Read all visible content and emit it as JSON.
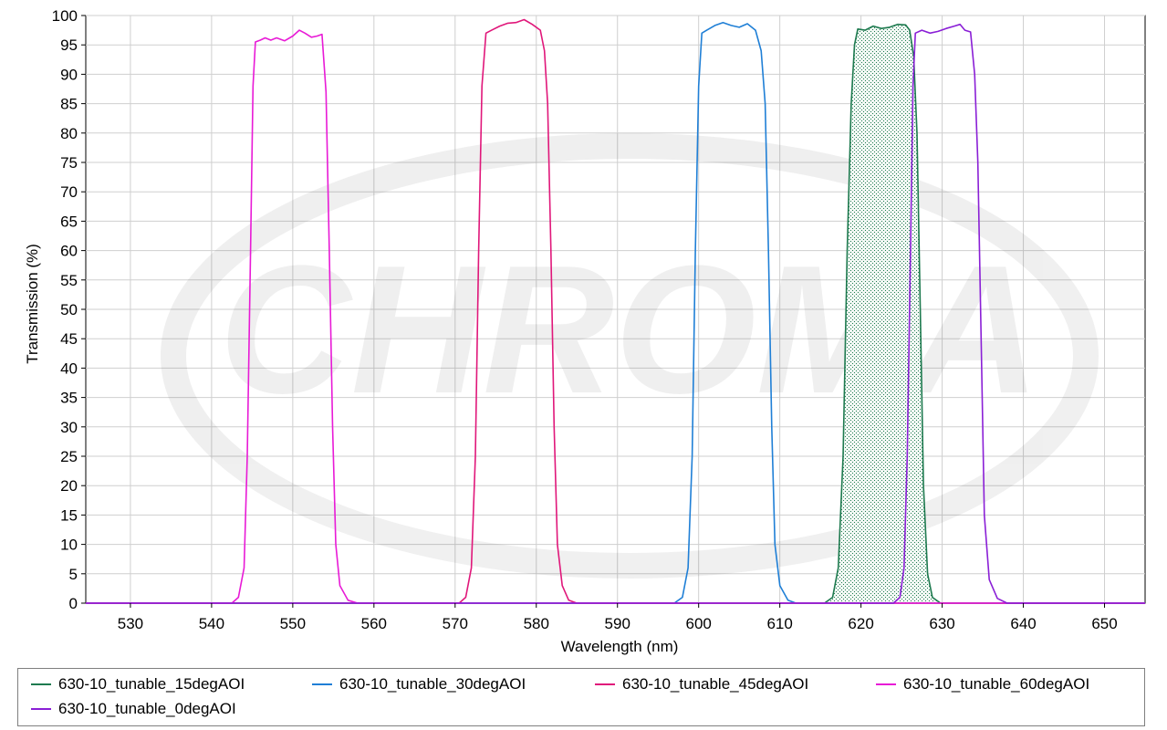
{
  "chart_data": {
    "type": "line",
    "xlabel": "Wavelength (nm)",
    "ylabel": "Transmission (%)",
    "xlim": [
      524.5,
      655
    ],
    "ylim": [
      0,
      100
    ],
    "x_ticks": [
      530,
      540,
      550,
      560,
      570,
      580,
      590,
      600,
      610,
      620,
      630,
      640,
      650
    ],
    "y_ticks": [
      0,
      5,
      10,
      15,
      20,
      25,
      30,
      35,
      40,
      45,
      50,
      55,
      60,
      65,
      70,
      75,
      80,
      85,
      90,
      95,
      100
    ],
    "grid": true,
    "legend_position": "bottom",
    "watermark": "CHROMA",
    "series": [
      {
        "name": "630-10_tunable_15degAOI",
        "color": "#1e7a4f",
        "fill": "dotted-green",
        "points": [
          [
            524.5,
            0
          ],
          [
            615.5,
            0
          ],
          [
            616.5,
            1
          ],
          [
            617.2,
            6
          ],
          [
            617.8,
            25
          ],
          [
            618.3,
            60
          ],
          [
            618.8,
            85
          ],
          [
            619.2,
            95
          ],
          [
            619.6,
            97.7
          ],
          [
            620.5,
            97.5
          ],
          [
            621.5,
            98.2
          ],
          [
            622.5,
            97.8
          ],
          [
            623.5,
            98
          ],
          [
            624.5,
            98.5
          ],
          [
            625.5,
            98.4
          ],
          [
            626,
            97.5
          ],
          [
            626.5,
            93
          ],
          [
            626.9,
            80
          ],
          [
            627.3,
            50
          ],
          [
            627.7,
            20
          ],
          [
            628.2,
            5
          ],
          [
            628.8,
            1
          ],
          [
            629.8,
            0
          ],
          [
            655,
            0
          ]
        ]
      },
      {
        "name": "630-10_tunable_30degAOI",
        "color": "#1f7fd6",
        "points": [
          [
            524.5,
            0
          ],
          [
            597,
            0
          ],
          [
            598,
            1
          ],
          [
            598.7,
            6
          ],
          [
            599.2,
            25
          ],
          [
            599.6,
            60
          ],
          [
            600,
            88
          ],
          [
            600.4,
            97
          ],
          [
            601,
            97.5
          ],
          [
            602,
            98.3
          ],
          [
            603,
            98.8
          ],
          [
            604,
            98.3
          ],
          [
            605,
            98
          ],
          [
            606,
            98.6
          ],
          [
            607,
            97.5
          ],
          [
            607.7,
            94
          ],
          [
            608.2,
            85
          ],
          [
            608.6,
            60
          ],
          [
            609,
            30
          ],
          [
            609.4,
            10
          ],
          [
            610,
            3
          ],
          [
            611,
            0.5
          ],
          [
            612,
            0
          ],
          [
            655,
            0
          ]
        ]
      },
      {
        "name": "630-10_tunable_45degAOI",
        "color": "#e0177a",
        "points": [
          [
            524.5,
            0
          ],
          [
            570.5,
            0
          ],
          [
            571.3,
            1
          ],
          [
            572,
            6
          ],
          [
            572.5,
            25
          ],
          [
            572.9,
            60
          ],
          [
            573.3,
            88
          ],
          [
            573.8,
            97
          ],
          [
            574.5,
            97.5
          ],
          [
            575.5,
            98.2
          ],
          [
            576.5,
            98.7
          ],
          [
            577.5,
            98.8
          ],
          [
            578.5,
            99.3
          ],
          [
            579.5,
            98.5
          ],
          [
            580.5,
            97.5
          ],
          [
            581,
            94
          ],
          [
            581.4,
            85
          ],
          [
            581.8,
            60
          ],
          [
            582.2,
            30
          ],
          [
            582.6,
            10
          ],
          [
            583.2,
            3
          ],
          [
            584,
            0.5
          ],
          [
            585,
            0
          ],
          [
            655,
            0
          ]
        ]
      },
      {
        "name": "630-10_tunable_60degAOI",
        "color": "#e81ad6",
        "points": [
          [
            524.5,
            0
          ],
          [
            542.5,
            0
          ],
          [
            543.3,
            1
          ],
          [
            544,
            6
          ],
          [
            544.4,
            25
          ],
          [
            544.8,
            60
          ],
          [
            545.1,
            88
          ],
          [
            545.4,
            95.5
          ],
          [
            546,
            95.8
          ],
          [
            546.6,
            96.2
          ],
          [
            547.3,
            95.8
          ],
          [
            548,
            96.2
          ],
          [
            549,
            95.7
          ],
          [
            550,
            96.5
          ],
          [
            550.8,
            97.5
          ],
          [
            551.5,
            97
          ],
          [
            552.3,
            96.3
          ],
          [
            553,
            96.5
          ],
          [
            553.6,
            96.8
          ],
          [
            554.1,
            87
          ],
          [
            554.5,
            60
          ],
          [
            554.9,
            30
          ],
          [
            555.3,
            10
          ],
          [
            555.8,
            3
          ],
          [
            556.8,
            0.5
          ],
          [
            558,
            0
          ],
          [
            655,
            0
          ]
        ]
      },
      {
        "name": "630-10_tunable_0degAOI",
        "color": "#8a1fd6",
        "points": [
          [
            524.5,
            0
          ],
          [
            624,
            0
          ],
          [
            624.8,
            1
          ],
          [
            625.3,
            6
          ],
          [
            625.7,
            25
          ],
          [
            626.1,
            60
          ],
          [
            626.4,
            88
          ],
          [
            626.7,
            97
          ],
          [
            627.5,
            97.5
          ],
          [
            628.5,
            97
          ],
          [
            629.5,
            97.3
          ],
          [
            630.5,
            97.8
          ],
          [
            631.5,
            98.2
          ],
          [
            632.2,
            98.5
          ],
          [
            632.8,
            97.5
          ],
          [
            633.5,
            97.2
          ],
          [
            634,
            90
          ],
          [
            634.4,
            75
          ],
          [
            634.8,
            45
          ],
          [
            635.2,
            15
          ],
          [
            635.8,
            4
          ],
          [
            636.8,
            0.8
          ],
          [
            638,
            0
          ],
          [
            655,
            0
          ]
        ]
      }
    ]
  }
}
